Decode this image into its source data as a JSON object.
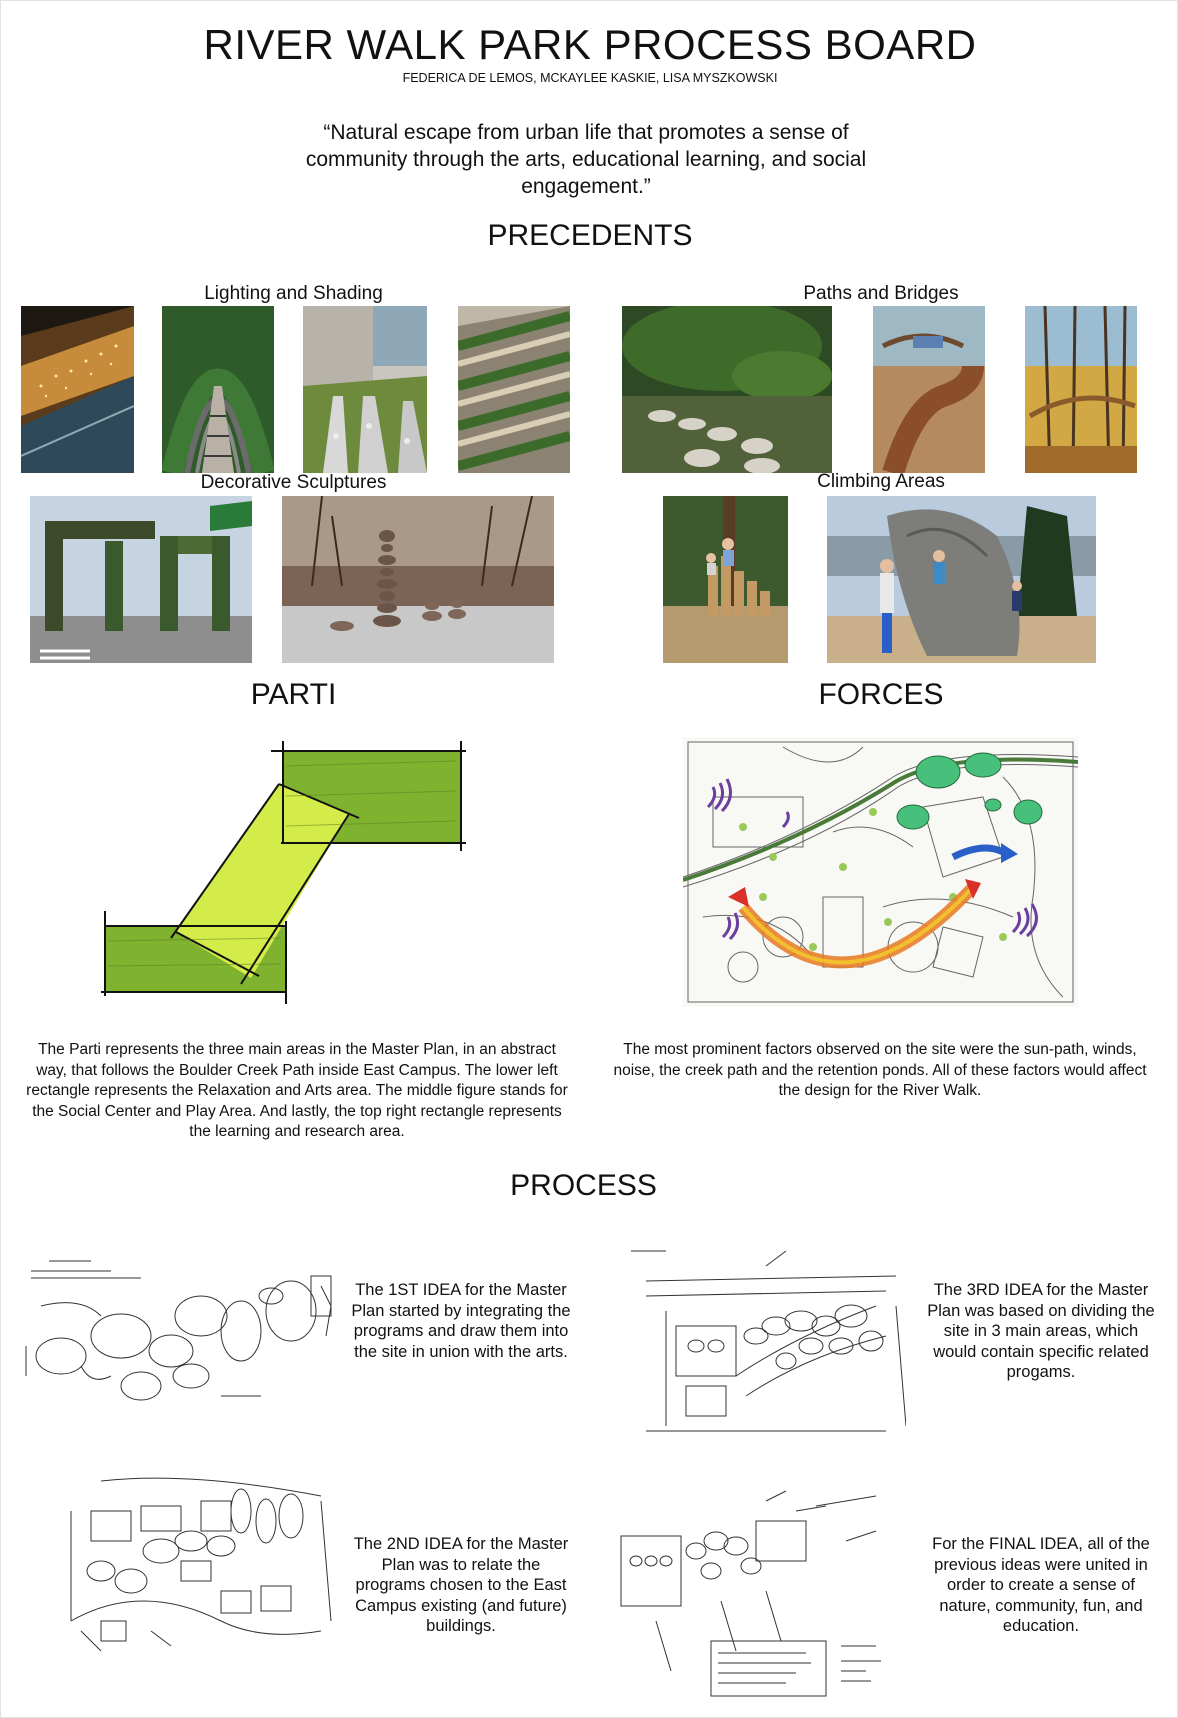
{
  "board": {
    "title": "RIVER WALK PARK PROCESS BOARD",
    "authors": "FEDERICA DE LEMOS, MCKAYLEE KASKIE, LISA MYSZKOWSKI",
    "quote": "“Natural escape from urban life that promotes a sense of community through the arts, educational learning, and social engagement.”"
  },
  "precedents": {
    "heading": "PRECEDENTS",
    "groups": [
      {
        "title": "Lighting and Shading"
      },
      {
        "title": "Paths and Bridges"
      },
      {
        "title": "Decorative Sculptures"
      },
      {
        "title": "Climbing Areas"
      }
    ]
  },
  "parti": {
    "heading": "PARTI",
    "description": "The Parti represents the three main areas in the Master Plan, in an abstract way, that follows the Boulder Creek Path inside East Campus. The lower left rectangle represents the Relaxation and Arts area. The middle figure stands for the Social Center and Play Area. And lastly, the top right rectangle represents the learning and research area."
  },
  "forces": {
    "heading": "FORCES",
    "description": "The most prominent factors observed on the site were the sun-path, winds, noise, the creek path and the retention ponds. All of these factors would affect the design for the River Walk."
  },
  "process": {
    "heading": "PROCESS",
    "ideas": [
      {
        "text": "The 1ST IDEA for the Master Plan started by integrating the programs and draw them into the site in union with the arts."
      },
      {
        "text": "The 3RD IDEA for the Master Plan was based on dividing the site in 3 main areas, which would contain specific related progams."
      },
      {
        "text": "The 2ND IDEA for the Master Plan was to relate the programs chosen to the East Campus existing (and future) buildings."
      },
      {
        "text": "For the FINAL IDEA, all of the previous ideas were united in order to create a sense of nature, community, fun, and education."
      }
    ]
  },
  "colors": {
    "parti_dark_green": "#7fb22f",
    "parti_light_green": "#d3ec4a",
    "sun_arc": "#e8791e",
    "wind_arrow": "#2a5fc8",
    "noise_purple": "#6a3fa0",
    "pond_green": "#46c07a"
  }
}
